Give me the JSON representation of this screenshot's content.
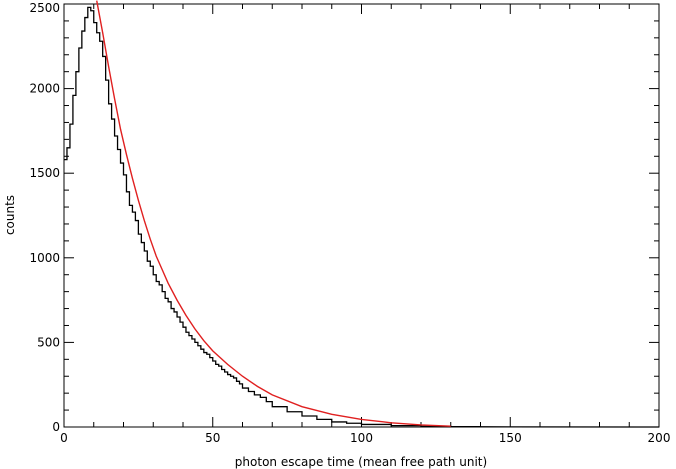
{
  "chart_data": {
    "type": "line",
    "xlabel": "photon escape time (mean free path unit)",
    "ylabel": "counts",
    "xlim": [
      0,
      200
    ],
    "ylim": [
      0,
      2500
    ],
    "x_ticks": [
      0,
      50,
      100,
      150,
      200
    ],
    "y_ticks": [
      0,
      500,
      1000,
      1500,
      2000,
      2500
    ],
    "x_tick_labels": [
      "0",
      "50",
      "100",
      "150",
      "200"
    ],
    "y_tick_labels": [
      "0",
      "500",
      "1000",
      "1500",
      "2000",
      "2500"
    ],
    "grid": false,
    "series": [
      {
        "style": "histogram-step",
        "color": "#000000",
        "bin_width": 1,
        "x": [
          0,
          1,
          2,
          3,
          4,
          5,
          6,
          7,
          8,
          9,
          10,
          11,
          12,
          13,
          14,
          15,
          16,
          17,
          18,
          19,
          20,
          21,
          22,
          23,
          24,
          25,
          26,
          27,
          28,
          29,
          30,
          31,
          32,
          33,
          34,
          35,
          36,
          37,
          38,
          39,
          40,
          41,
          42,
          43,
          44,
          45,
          46,
          47,
          48,
          49,
          50,
          51,
          52,
          53,
          54,
          55,
          56,
          57,
          58,
          59,
          60,
          62,
          64,
          66,
          68,
          70,
          75,
          80,
          85,
          90,
          95,
          100,
          110,
          120,
          130,
          140
        ],
        "y": [
          1580,
          1650,
          1790,
          1960,
          2100,
          2240,
          2340,
          2420,
          2480,
          2460,
          2390,
          2330,
          2280,
          2190,
          2050,
          1910,
          1820,
          1720,
          1640,
          1560,
          1490,
          1390,
          1310,
          1270,
          1220,
          1140,
          1090,
          1040,
          980,
          950,
          900,
          860,
          840,
          800,
          760,
          740,
          700,
          680,
          650,
          620,
          590,
          560,
          540,
          520,
          500,
          480,
          460,
          440,
          430,
          410,
          390,
          370,
          360,
          340,
          325,
          310,
          300,
          290,
          270,
          255,
          230,
          210,
          190,
          175,
          150,
          120,
          90,
          65,
          45,
          30,
          22,
          15,
          8,
          4,
          2,
          1
        ]
      },
      {
        "style": "fit-curve",
        "color": "#e02020",
        "x": [
          11,
          13,
          15,
          17,
          19,
          21,
          23,
          25,
          27,
          29,
          31,
          33,
          35,
          38,
          41,
          44,
          47,
          50,
          55,
          60,
          65,
          70,
          80,
          90,
          100,
          110,
          120,
          130
        ],
        "y": [
          2520,
          2330,
          2130,
          1940,
          1760,
          1610,
          1470,
          1340,
          1220,
          1110,
          1010,
          930,
          850,
          750,
          660,
          580,
          510,
          450,
          370,
          300,
          240,
          190,
          120,
          75,
          45,
          25,
          12,
          5
        ]
      }
    ]
  }
}
